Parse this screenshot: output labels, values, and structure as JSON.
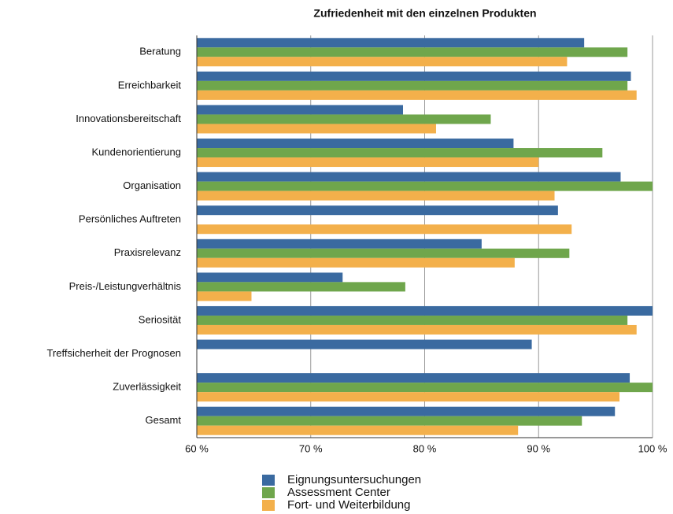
{
  "chart_data": {
    "type": "hbar",
    "title": "Zufriedenheit mit den einzelnen Produkten",
    "categories": [
      "Beratung",
      "Erreichbarkeit",
      "Innovationsbereitschaft",
      "Kundenorientierung",
      "Organisation",
      "Persönliches Auftreten",
      "Praxisrelevanz",
      "Preis-/Leistungverhältnis",
      "Seriosität",
      "Treffsicherheit der Prognosen",
      "Zuverlässigkeit",
      "Gesamt"
    ],
    "series": [
      {
        "name": "Eignungsuntersuchungen",
        "color": "#3a6aa0",
        "values": [
          94.0,
          98.1,
          78.1,
          87.8,
          97.2,
          91.7,
          85.0,
          72.8,
          100,
          89.4,
          98.0,
          96.7
        ]
      },
      {
        "name": "Assessment Center",
        "color": "#6fa64c",
        "values": [
          97.8,
          97.8,
          85.8,
          95.6,
          100,
          null,
          92.7,
          78.3,
          97.8,
          null,
          100,
          93.8
        ]
      },
      {
        "name": "Fort- und Weiterbildung",
        "color": "#f3b04b",
        "values": [
          92.5,
          98.6,
          81.0,
          90.0,
          91.4,
          92.9,
          87.9,
          64.8,
          98.6,
          null,
          97.1,
          88.2
        ]
      }
    ],
    "xlim": [
      60,
      100
    ],
    "xticks": [
      {
        "value": 60,
        "label": "60 %"
      },
      {
        "value": 70,
        "label": "70 %"
      },
      {
        "value": 80,
        "label": "80 %"
      },
      {
        "value": 90,
        "label": "90 %"
      },
      {
        "value": 100,
        "label": "100 %"
      }
    ],
    "grid": true
  }
}
